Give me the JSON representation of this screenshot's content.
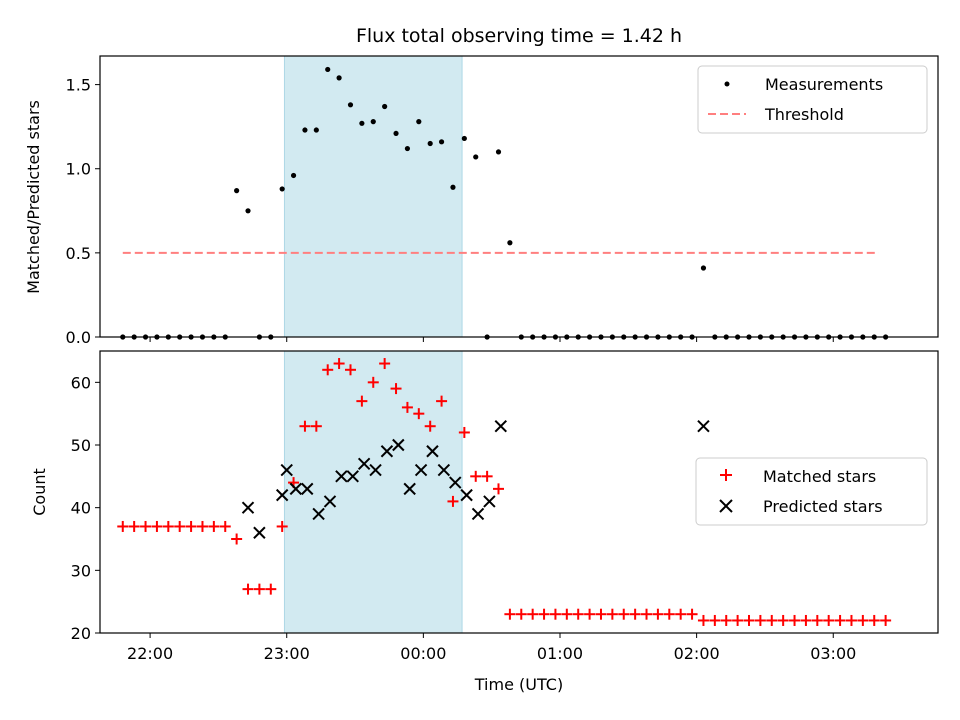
{
  "chart_data": [
    {
      "type": "scatter",
      "title": "Flux total observing time = 1.42 h",
      "xlabel": "",
      "ylabel": "Matched/Predicted stars",
      "ylim": [
        0,
        1.67
      ],
      "yticks": [
        "0.0",
        "0.5",
        "1.0",
        "1.5"
      ],
      "xlim": [
        "21:38",
        "03:46"
      ],
      "highlight_span": [
        "22:59",
        "00:17"
      ],
      "highlight_color": "#add8e6",
      "legend": {
        "placement": "top-right",
        "entries": [
          "Measurements",
          "Threshold"
        ]
      },
      "threshold": {
        "name": "Threshold",
        "value": 0.5,
        "x_range": [
          "21:48",
          "03:20"
        ],
        "color": "#ff7f7f",
        "style": "dashed"
      },
      "series": [
        {
          "name": "Measurements",
          "color": "#000000",
          "x": [
            "21:48",
            "21:53",
            "21:58",
            "22:03",
            "22:08",
            "22:13",
            "22:18",
            "22:23",
            "22:28",
            "22:33",
            "22:38",
            "22:43",
            "22:48",
            "22:53",
            "22:58",
            "23:03",
            "23:08",
            "23:13",
            "23:18",
            "23:23",
            "23:28",
            "23:33",
            "23:38",
            "23:43",
            "23:48",
            "23:53",
            "23:58",
            "00:03",
            "00:08",
            "00:13",
            "00:18",
            "00:23",
            "00:28",
            "00:33",
            "00:38",
            "00:43",
            "00:48",
            "00:53",
            "00:58",
            "01:03",
            "01:08",
            "01:13",
            "01:18",
            "01:23",
            "01:28",
            "01:33",
            "01:38",
            "01:43",
            "01:48",
            "01:53",
            "01:58",
            "02:03",
            "02:08",
            "02:13",
            "02:18",
            "02:23",
            "02:28",
            "02:33",
            "02:38",
            "02:43",
            "02:48",
            "02:53",
            "02:58",
            "03:03",
            "03:08",
            "03:13",
            "03:18",
            "03:23"
          ],
          "y": [
            0,
            0,
            0,
            0,
            0,
            0,
            0,
            0,
            0,
            0,
            0.87,
            0.75,
            0,
            0,
            0.88,
            0.96,
            1.23,
            1.23,
            1.59,
            1.54,
            1.38,
            1.27,
            1.28,
            1.37,
            1.21,
            1.12,
            1.28,
            1.15,
            1.16,
            0.89,
            1.18,
            1.07,
            0,
            1.1,
            0.56,
            0,
            0,
            0,
            0,
            0,
            0,
            0,
            0,
            0,
            0,
            0,
            0,
            0,
            0,
            0,
            0,
            0.41,
            0,
            0,
            0,
            0,
            0,
            0,
            0,
            0,
            0,
            0,
            0,
            0,
            0,
            0,
            0,
            0
          ]
        }
      ]
    },
    {
      "type": "scatter",
      "title": "",
      "xlabel": "Time (UTC)",
      "ylabel": "Count",
      "ylim": [
        20,
        65
      ],
      "yticks": [
        "20",
        "30",
        "40",
        "50",
        "60"
      ],
      "xticks": [
        "22:00",
        "23:00",
        "00:00",
        "01:00",
        "02:00",
        "03:00"
      ],
      "xlim": [
        "21:38",
        "03:46"
      ],
      "highlight_span": [
        "22:59",
        "00:17"
      ],
      "highlight_color": "#add8e6",
      "legend": {
        "placement": "center-right",
        "entries": [
          "Matched stars",
          "Predicted stars"
        ]
      },
      "series": [
        {
          "name": "Matched stars",
          "marker": "plus",
          "color": "#ff0000",
          "x": [
            "21:48",
            "21:53",
            "21:58",
            "22:03",
            "22:08",
            "22:13",
            "22:18",
            "22:23",
            "22:28",
            "22:33",
            "22:38",
            "22:43",
            "22:48",
            "22:53",
            "22:58",
            "23:03",
            "23:08",
            "23:13",
            "23:18",
            "23:23",
            "23:28",
            "23:33",
            "23:38",
            "23:43",
            "23:48",
            "23:53",
            "23:58",
            "00:03",
            "00:08",
            "00:13",
            "00:18",
            "00:23",
            "00:28",
            "00:33",
            "00:38",
            "00:43",
            "00:48",
            "00:53",
            "00:58",
            "01:03",
            "01:08",
            "01:13",
            "01:18",
            "01:23",
            "01:28",
            "01:33",
            "01:38",
            "01:43",
            "01:48",
            "01:53",
            "01:58",
            "02:03",
            "02:08",
            "02:13",
            "02:18",
            "02:23",
            "02:28",
            "02:33",
            "02:38",
            "02:43",
            "02:48",
            "02:53",
            "02:58",
            "03:03",
            "03:08",
            "03:13",
            "03:18",
            "03:23"
          ],
          "y": [
            37,
            37,
            37,
            37,
            37,
            37,
            37,
            37,
            37,
            37,
            35,
            27,
            27,
            27,
            37,
            44,
            53,
            53,
            62,
            63,
            62,
            57,
            60,
            63,
            59,
            56,
            55,
            53,
            57,
            41,
            52,
            45,
            45,
            43,
            23,
            23,
            23,
            23,
            23,
            23,
            23,
            23,
            23,
            23,
            23,
            23,
            23,
            23,
            23,
            23,
            23,
            22,
            22,
            22,
            22,
            22,
            22,
            22,
            22,
            22,
            22,
            22,
            22,
            22,
            22,
            22,
            22,
            22
          ]
        },
        {
          "name": "Predicted stars",
          "marker": "x",
          "color": "#000000",
          "x": [
            "22:43",
            "22:48",
            "22:58",
            "23:00",
            "23:04",
            "23:09",
            "23:14",
            "23:19",
            "23:24",
            "23:29",
            "23:34",
            "23:39",
            "23:44",
            "23:49",
            "23:54",
            "23:59",
            "00:04",
            "00:09",
            "00:14",
            "00:19",
            "00:24",
            "00:29",
            "00:34",
            "02:03"
          ],
          "y": [
            40,
            36,
            42,
            46,
            43,
            43,
            39,
            41,
            45,
            45,
            47,
            46,
            49,
            50,
            43,
            46,
            49,
            46,
            44,
            42,
            39,
            41,
            53,
            53
          ]
        }
      ]
    }
  ]
}
